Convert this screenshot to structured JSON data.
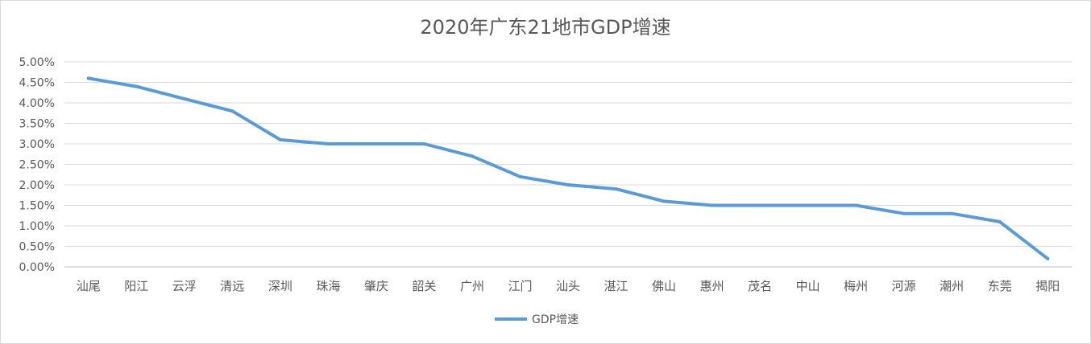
{
  "chart_data": {
    "type": "line",
    "title": "2020年广东21地市GDP增速",
    "xlabel": "",
    "ylabel": "",
    "ylim": [
      0,
      5
    ],
    "yticks": [
      "0.00%",
      "0.50%",
      "1.00%",
      "1.50%",
      "2.00%",
      "2.50%",
      "3.00%",
      "3.50%",
      "4.00%",
      "4.50%",
      "5.00%"
    ],
    "categories": [
      "汕尾",
      "阳江",
      "云浮",
      "清远",
      "深圳",
      "珠海",
      "肇庆",
      "韶关",
      "广州",
      "江门",
      "汕头",
      "湛江",
      "佛山",
      "惠州",
      "茂名",
      "中山",
      "梅州",
      "河源",
      "潮州",
      "东莞",
      "揭阳"
    ],
    "series": [
      {
        "name": "GDP增速",
        "color": "#5b9bd5",
        "values": [
          4.6,
          4.4,
          4.1,
          3.8,
          3.1,
          3.0,
          3.0,
          3.0,
          2.7,
          2.2,
          2.0,
          1.9,
          1.6,
          1.5,
          1.5,
          1.5,
          1.5,
          1.3,
          1.3,
          1.1,
          0.2
        ]
      }
    ],
    "grid": true,
    "legend": "bottom"
  }
}
